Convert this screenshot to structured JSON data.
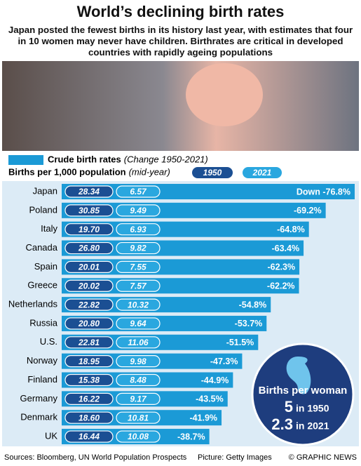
{
  "title": "World’s declining birth rates",
  "subtitle": "Japan posted the fewest births in its history last year, with estimates that four in 10 women may never have children. Birthrates are critical in developed countries with rapidly ageing populations",
  "chart_data": {
    "type": "bar",
    "orientation": "horizontal",
    "legend_title": "Crude birth rates",
    "legend_note": "(Change 1950-2021)",
    "axis_label": "Births per 1,000 population",
    "axis_note": "(mid-year)",
    "categories": [
      "Japan",
      "Poland",
      "Italy",
      "Canada",
      "Spain",
      "Greece",
      "Netherlands",
      "Russia",
      "U.S.",
      "Norway",
      "Finland",
      "Germany",
      "Denmark",
      "UK"
    ],
    "series": [
      {
        "name": "1950",
        "color": "#1b4f93",
        "values": [
          28.34,
          30.85,
          19.7,
          26.8,
          20.01,
          20.02,
          22.82,
          20.8,
          22.81,
          18.95,
          15.38,
          16.22,
          18.6,
          16.44
        ],
        "value_labels": [
          "28.34",
          "30.85",
          "19.70",
          "26.80",
          "20.01",
          "20.02",
          "22.82",
          "20.80",
          "22.81",
          "18.95",
          "15.38",
          "16.22",
          "18.60",
          "16.44"
        ]
      },
      {
        "name": "2021",
        "color": "#2aa7df",
        "values": [
          6.57,
          9.49,
          6.93,
          9.82,
          7.55,
          7.57,
          10.32,
          9.64,
          11.06,
          9.98,
          8.48,
          9.17,
          10.81,
          10.08
        ],
        "value_labels": [
          "6.57",
          "9.49",
          "6.93",
          "9.82",
          "7.55",
          "7.57",
          "10.32",
          "9.64",
          "11.06",
          "9.98",
          "8.48",
          "9.17",
          "10.81",
          "10.08"
        ]
      }
    ],
    "change": {
      "color": "#1b9ad6",
      "values": [
        -76.8,
        -69.2,
        -64.8,
        -63.4,
        -62.3,
        -62.2,
        -54.8,
        -53.7,
        -51.5,
        -47.3,
        -44.9,
        -43.5,
        -41.9,
        -38.7
      ],
      "value_labels": [
        "Down -76.8%",
        "-69.2%",
        "-64.8%",
        "-63.4%",
        "-62.3%",
        "-62.2%",
        "-54.8%",
        "-53.7%",
        "-51.5%",
        "-47.3%",
        "-44.9%",
        "-43.5%",
        "-41.9%",
        "-38.7%"
      ]
    }
  },
  "inset": {
    "title": "Births per woman",
    "items": [
      {
        "value": "5",
        "label": "in 1950"
      },
      {
        "value": "2.3",
        "label": "in 2021"
      }
    ]
  },
  "footer": {
    "sources": "Sources: Bloomberg, UN World Population Prospects",
    "picture": "Picture: Getty Images",
    "credit": "© GRAPHIC NEWS"
  }
}
